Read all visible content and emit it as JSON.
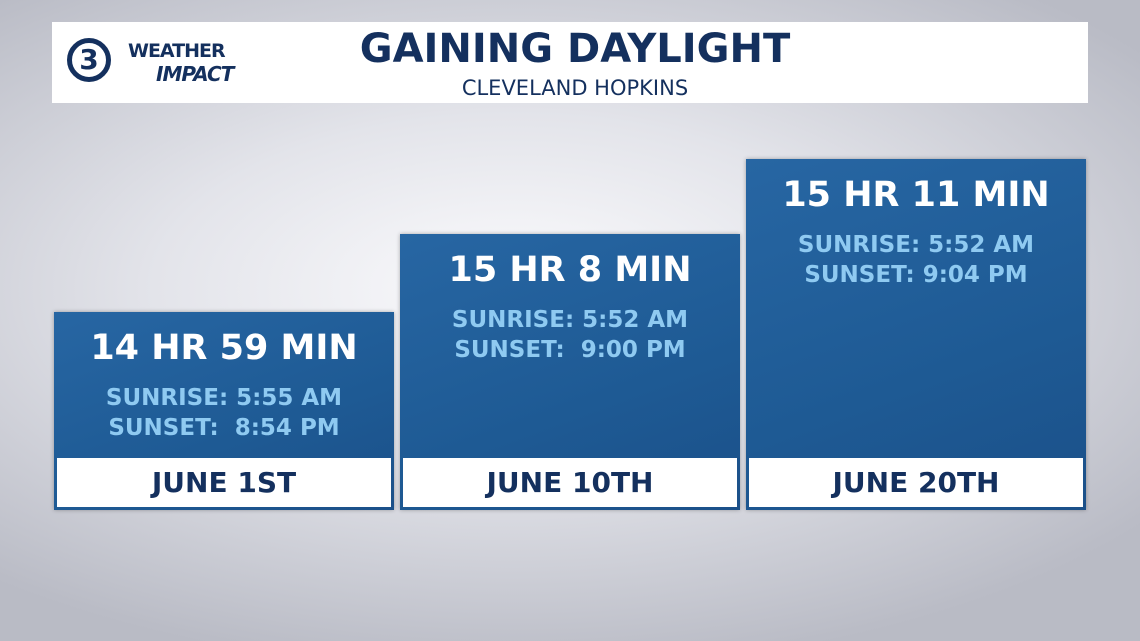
{
  "header": {
    "logo": {
      "number": "3",
      "line1": "WEATHER",
      "line2": "IMPACT"
    },
    "title": "GAINING DAYLIGHT",
    "subtitle": "CLEVELAND HOPKINS"
  },
  "cards": [
    {
      "daylight": "14 HR 59 MIN",
      "sunrise": "SUNRISE: 5:55 AM",
      "sunset": "SUNSET:  8:54 PM",
      "date": "JUNE 1ST"
    },
    {
      "daylight": "15 HR 8 MIN",
      "sunrise": "SUNRISE: 5:52 AM",
      "sunset": "SUNSET:  9:00 PM",
      "date": "JUNE 10TH"
    },
    {
      "daylight": "15 HR 11 MIN",
      "sunrise": "SUNRISE: 5:52 AM",
      "sunset": "SUNSET: 9:04 PM",
      "date": "JUNE 20TH"
    }
  ]
}
